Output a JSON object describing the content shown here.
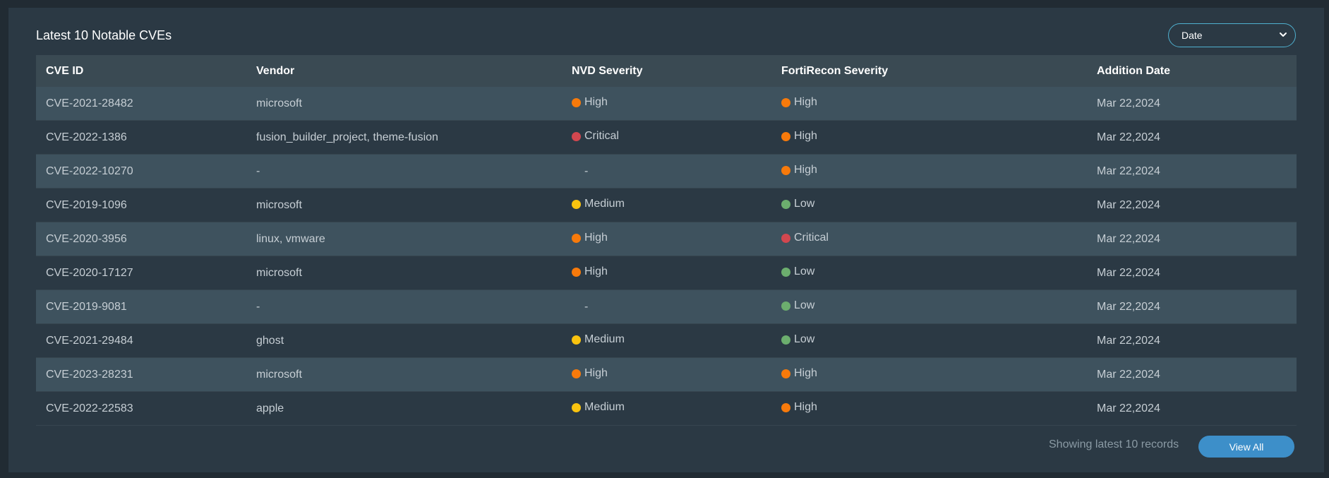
{
  "widget": {
    "title": "Latest 10 Notable CVEs",
    "sort_select": {
      "value": "Date",
      "icon": "chevron-down-icon"
    }
  },
  "colors": {
    "Critical": "#d2474f",
    "High": "#f77a0b",
    "Medium": "#f9c30f",
    "Low": "#6cae6e",
    "accent": "#3d8fc9",
    "select_border": "#4fb0cf"
  },
  "table": {
    "columns": [
      "CVE ID",
      "Vendor",
      "NVD Severity",
      "FortiRecon Severity",
      "Addition Date"
    ],
    "rows": [
      {
        "cve_id": "CVE-2021-28482",
        "vendor": "microsoft",
        "nvd": "High",
        "fortirecon": "High",
        "date": "Mar 22,2024"
      },
      {
        "cve_id": "CVE-2022-1386",
        "vendor": "fusion_builder_project, theme-fusion",
        "nvd": "Critical",
        "fortirecon": "High",
        "date": "Mar 22,2024"
      },
      {
        "cve_id": "CVE-2022-10270",
        "vendor": "-",
        "nvd": "-",
        "fortirecon": "High",
        "date": "Mar 22,2024"
      },
      {
        "cve_id": "CVE-2019-1096",
        "vendor": "microsoft",
        "nvd": "Medium",
        "fortirecon": "Low",
        "date": "Mar 22,2024"
      },
      {
        "cve_id": "CVE-2020-3956",
        "vendor": "linux, vmware",
        "nvd": "High",
        "fortirecon": "Critical",
        "date": "Mar 22,2024"
      },
      {
        "cve_id": "CVE-2020-17127",
        "vendor": "microsoft",
        "nvd": "High",
        "fortirecon": "Low",
        "date": "Mar 22,2024"
      },
      {
        "cve_id": "CVE-2019-9081",
        "vendor": "-",
        "nvd": "-",
        "fortirecon": "Low",
        "date": "Mar 22,2024"
      },
      {
        "cve_id": "CVE-2021-29484",
        "vendor": "ghost",
        "nvd": "Medium",
        "fortirecon": "Low",
        "date": "Mar 22,2024"
      },
      {
        "cve_id": "CVE-2023-28231",
        "vendor": "microsoft",
        "nvd": "High",
        "fortirecon": "High",
        "date": "Mar 22,2024"
      },
      {
        "cve_id": "CVE-2022-22583",
        "vendor": "apple",
        "nvd": "Medium",
        "fortirecon": "High",
        "date": "Mar 22,2024"
      }
    ]
  },
  "footer": {
    "status_text": "Showing latest 10 records",
    "view_all_label": "View All"
  }
}
